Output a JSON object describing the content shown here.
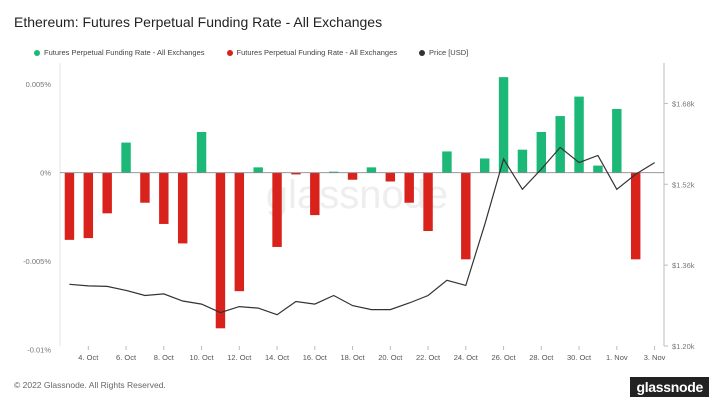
{
  "title": "Ethereum: Futures Perpetual Funding Rate - All Exchanges",
  "footer": "© 2022 Glassnode. All Rights Reserved.",
  "logo": "glassnode",
  "watermark": "glassnode",
  "colors": {
    "positive": "#1bb877",
    "negative": "#d9221c",
    "price": "#333333",
    "axis": "#999999"
  },
  "chart_data": {
    "type": "bar",
    "legend_placement": "top-left",
    "legend": [
      {
        "label": "Futures Perpetual Funding Rate - All Exchanges",
        "color": "#1bb877"
      },
      {
        "label": "Futures Perpetual Funding Rate - All Exchanges",
        "color": "#d9221c"
      },
      {
        "label": "Price [USD]",
        "color": "#333333"
      }
    ],
    "x_tick_labels": [
      "4. Oct",
      "6. Oct",
      "8. Oct",
      "10. Oct",
      "12. Oct",
      "14. Oct",
      "16. Oct",
      "18. Oct",
      "20. Oct",
      "22. Oct",
      "24. Oct",
      "26. Oct",
      "28. Oct",
      "30. Oct",
      "1. Nov",
      "3. Nov"
    ],
    "dates": [
      "3 Oct",
      "4 Oct",
      "5 Oct",
      "6 Oct",
      "7 Oct",
      "8 Oct",
      "9 Oct",
      "10 Oct",
      "11 Oct",
      "12 Oct",
      "13 Oct",
      "14 Oct",
      "15 Oct",
      "16 Oct",
      "17 Oct",
      "18 Oct",
      "19 Oct",
      "20 Oct",
      "21 Oct",
      "22 Oct",
      "23 Oct",
      "24 Oct",
      "25 Oct",
      "26 Oct",
      "27 Oct",
      "28 Oct",
      "29 Oct",
      "30 Oct",
      "31 Oct",
      "1 Nov",
      "2 Nov",
      "3 Nov"
    ],
    "funding_rate": [
      -0.0038,
      -0.0037,
      -0.0023,
      0.0017,
      -0.0017,
      -0.0029,
      -0.004,
      0.0023,
      -0.0088,
      -0.0067,
      0.0003,
      -0.0042,
      -0.0001,
      -0.0024,
      0.0,
      -0.0004,
      0.0003,
      -0.0005,
      -0.0017,
      -0.0033,
      0.0012,
      -0.0049,
      0.0008,
      0.0054,
      0.0013,
      0.0023,
      0.0032,
      0.0043,
      0.0004,
      0.0036,
      -0.0049,
      null
    ],
    "price": [
      1322,
      1319,
      1318,
      1310,
      1300,
      1303,
      1289,
      1283,
      1266,
      1278,
      1275,
      1262,
      1288,
      1283,
      1300,
      1280,
      1272,
      1272,
      1285,
      1300,
      1330,
      1320,
      1440,
      1570,
      1510,
      1550,
      1593,
      1563,
      1577,
      1510,
      1540,
      1563
    ],
    "y_left": {
      "ticks": [
        "0.005%",
        "0%",
        "-0.005%",
        "-0.01%"
      ],
      "values": [
        0.005,
        0.0,
        -0.005,
        -0.01
      ],
      "range": [
        -0.0098,
        0.0062
      ]
    },
    "y_right": {
      "ticks": [
        "$1.68k",
        "$1.52k",
        "$1.36k",
        "$1.20k"
      ],
      "values": [
        1680,
        1520,
        1360,
        1200
      ],
      "range": [
        1200,
        1760
      ]
    }
  }
}
